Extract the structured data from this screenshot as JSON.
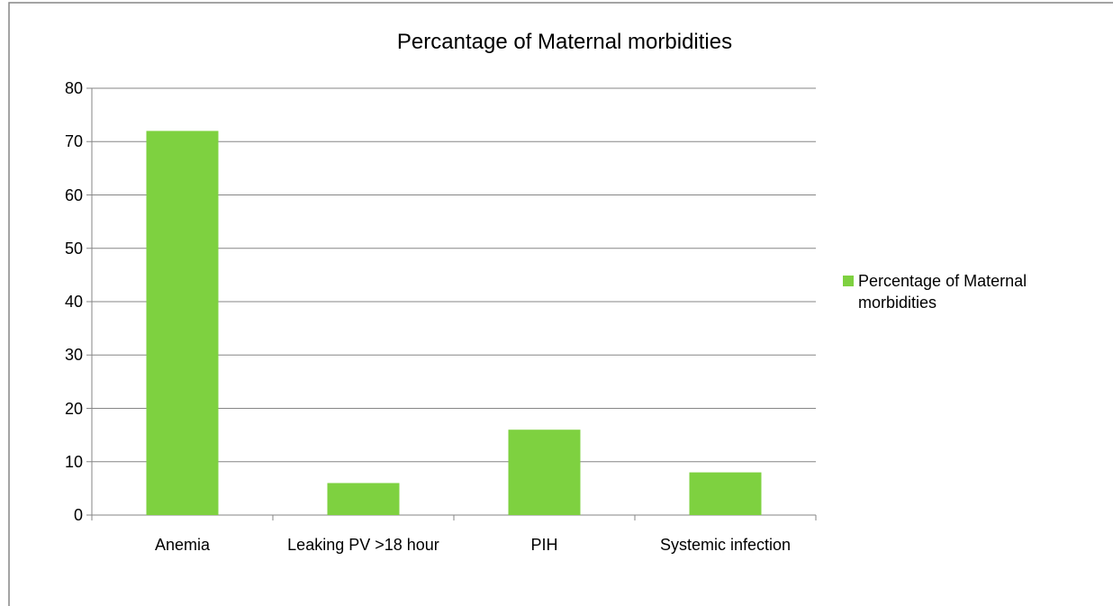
{
  "chart_data": {
    "type": "bar",
    "title": "Percantage of Maternal morbidities",
    "categories": [
      "Anemia",
      "Leaking PV >18 hour",
      "PIH",
      "Systemic infection"
    ],
    "series": [
      {
        "name": "Percentage of Maternal morbidities",
        "color": "#7ed140",
        "values": [
          72,
          6,
          16,
          8
        ]
      }
    ],
    "ylim": [
      0,
      80
    ],
    "yticks": [
      0,
      10,
      20,
      30,
      40,
      50,
      60,
      70,
      80
    ],
    "grid": true,
    "legend": "right"
  }
}
